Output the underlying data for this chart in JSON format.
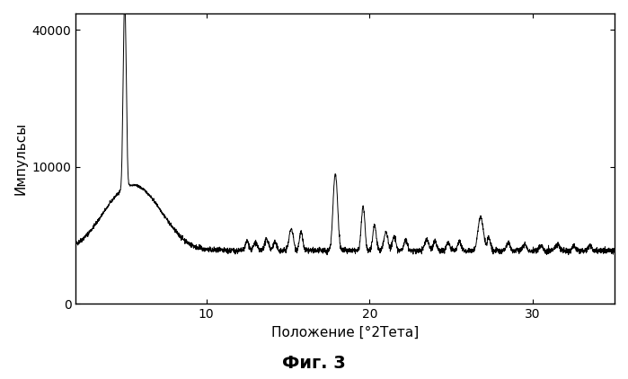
{
  "ylabel": "Импульсы",
  "xlabel": "Положение [°2Тета]",
  "caption": "Фиг. 3",
  "xlim": [
    2,
    35
  ],
  "ylim": [
    0,
    45000
  ],
  "yticks": [
    0,
    10000,
    40000
  ],
  "xticks": [
    10,
    20,
    30
  ],
  "bg_color": "#ffffff",
  "line_color": "#000000",
  "caption_fontsize": 14,
  "ylabel_fontsize": 11,
  "xlabel_fontsize": 11
}
